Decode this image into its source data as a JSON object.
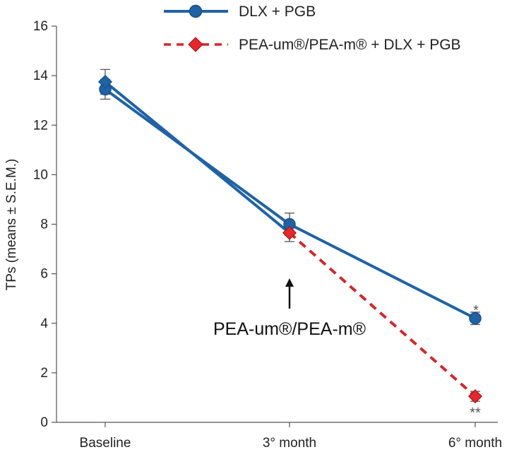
{
  "chart_data": {
    "type": "line",
    "ylabel": "TPs (means ± S.E.M.)",
    "xlabel": "",
    "categories": [
      "Baseline",
      "3° month",
      "6° month"
    ],
    "ylim": [
      0,
      16
    ],
    "yticks": [
      0,
      2,
      4,
      6,
      8,
      10,
      12,
      14,
      16
    ],
    "series": [
      {
        "name": "DLX + PGB",
        "values": [
          13.45,
          8.0,
          4.2
        ],
        "errors": [
          0.4,
          0.45,
          0.25
        ],
        "color": "#1f63a6",
        "marker": "circle",
        "line_style": "solid"
      },
      {
        "name": "PEA-um®/PEA-m® + DLX + PGB",
        "values": [
          13.75,
          7.65,
          1.05
        ],
        "errors": [
          0.5,
          0.35,
          0.2
        ],
        "color": "#d6262b",
        "fill": "#e8262c",
        "marker": "diamond",
        "line_style": "dashed",
        "path_color_first_segment": "#1f63a6"
      }
    ],
    "annotations": [
      {
        "text": "PEA-um®/PEA-m®",
        "at_category": "3° month",
        "type": "arrow-up"
      },
      {
        "text": "*",
        "at_category": "6° month",
        "series": "DLX + PGB"
      },
      {
        "text": "**",
        "at_category": "6° month",
        "series": "PEA-um®/PEA-m® + DLX + PGB"
      }
    ],
    "legend_position": "top"
  }
}
